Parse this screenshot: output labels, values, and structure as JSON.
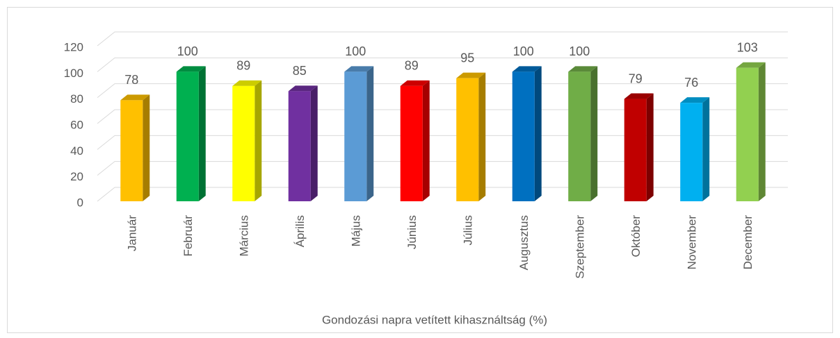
{
  "chart_data": {
    "type": "bar3d",
    "xlabel": "Gondozási napra vetített kihasználtság (%)",
    "categories": [
      "Január",
      "Február",
      "Március",
      "Április",
      "Május",
      "Június",
      "Július",
      "Augusztus",
      "Szeptember",
      "Október",
      "November",
      "December"
    ],
    "values": [
      78,
      100,
      89,
      85,
      100,
      89,
      95,
      100,
      100,
      79,
      76,
      103
    ],
    "colors": [
      "#ffc000",
      "#00b050",
      "#ffff00",
      "#7030a0",
      "#5b9bd5",
      "#ff0000",
      "#ffc000",
      "#0070c0",
      "#70ad47",
      "#c00000",
      "#00b0f0",
      "#92d050"
    ],
    "ylim": [
      0,
      120
    ],
    "yticks": [
      0,
      20,
      40,
      60,
      80,
      100,
      120
    ],
    "grid": true,
    "data_labels": true
  }
}
